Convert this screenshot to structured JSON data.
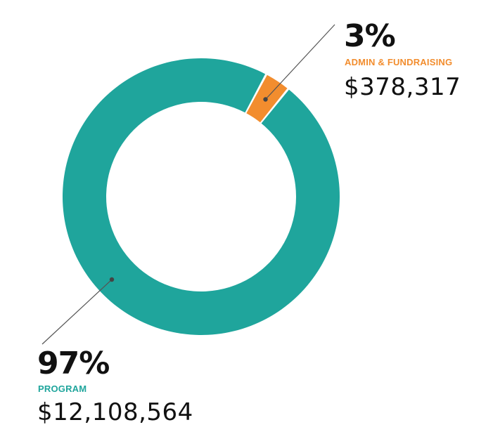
{
  "chart_data": {
    "type": "pie",
    "variant": "donut",
    "categories": [
      "ADMIN & FUNDRAISING",
      "PROGRAM"
    ],
    "percent_labels": [
      "3%",
      "97%"
    ],
    "amount_labels": [
      "$378,317",
      "$12,108,564"
    ],
    "values": [
      378317,
      12108564
    ],
    "colors": [
      "#F28D2E",
      "#1FA59C"
    ],
    "legend": "none"
  }
}
